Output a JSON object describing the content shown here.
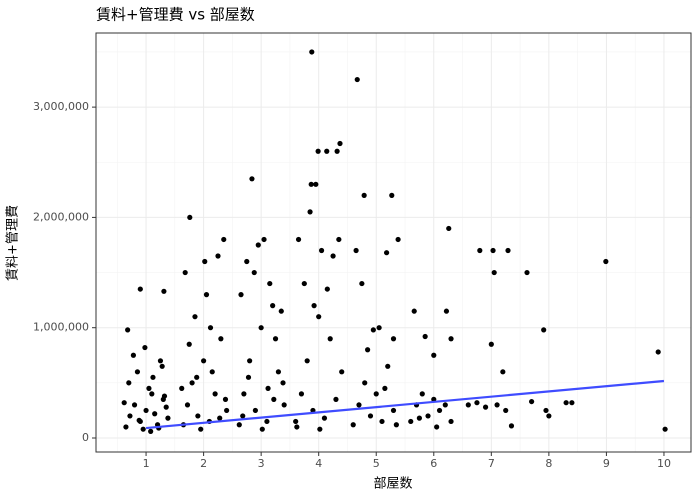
{
  "chart_data": {
    "type": "scatter",
    "title": "賃料+管理費 vs 部屋数",
    "x_label": "部屋数",
    "y_label": "賃料+管理費",
    "color": "#000000",
    "grid": true,
    "xlim": [
      0.13,
      10.47
    ],
    "xticks": [
      1,
      2,
      3,
      4,
      5,
      6,
      7,
      8,
      9,
      10
    ],
    "ylim": [
      -127000,
      3672000
    ],
    "yticks": [
      {
        "value": 0,
        "label": "0"
      },
      {
        "value": 1000000,
        "label": "1,000,000"
      },
      {
        "value": 2000000,
        "label": "2,000,000"
      },
      {
        "value": 3000000,
        "label": "3,000,000"
      }
    ],
    "x": [
      0.65,
      0.72,
      0.8,
      0.9,
      1.0,
      1.1,
      1.2,
      1.3,
      1.38,
      0.7,
      0.85,
      0.95,
      1.05,
      1.15,
      1.25,
      1.35,
      0.62,
      0.78,
      0.88,
      1.12,
      1.22,
      1.32,
      0.98,
      1.08,
      0.68,
      1.28,
      0.9,
      1.31,
      1.65,
      1.72,
      1.8,
      1.9,
      2.0,
      2.1,
      2.2,
      2.3,
      2.4,
      1.68,
      1.76,
      1.85,
      1.95,
      2.05,
      2.15,
      2.25,
      2.35,
      2.38,
      1.75,
      2.12,
      1.62,
      2.28,
      2.02,
      1.88,
      2.62,
      2.7,
      2.8,
      2.9,
      3.0,
      3.1,
      3.2,
      3.3,
      3.4,
      2.84,
      2.65,
      2.75,
      2.95,
      3.05,
      3.15,
      3.25,
      3.35,
      3.38,
      2.68,
      3.02,
      3.12,
      2.88,
      3.22,
      2.78,
      3.6,
      3.7,
      3.8,
      3.9,
      4.0,
      4.1,
      4.2,
      4.3,
      4.4,
      3.88,
      4.37,
      3.99,
      4.14,
      4.32,
      3.87,
      3.95,
      3.85,
      3.65,
      4.05,
      4.25,
      3.75,
      4.15,
      3.92,
      4.35,
      3.62,
      4.02,
      4.6,
      4.7,
      4.8,
      4.9,
      5.0,
      5.1,
      5.2,
      5.3,
      5.38,
      4.67,
      4.79,
      5.27,
      5.18,
      4.65,
      4.75,
      5.05,
      4.95,
      5.3,
      4.85,
      5.15,
      5.35,
      5.6,
      5.7,
      5.8,
      5.9,
      6.0,
      6.1,
      6.2,
      6.3,
      6.26,
      5.66,
      5.85,
      6.0,
      6.22,
      6.3,
      6.05,
      5.75,
      6.6,
      6.75,
      6.9,
      7.0,
      7.2,
      7.25,
      7.35,
      6.8,
      7.03,
      7.29,
      7.62,
      7.05,
      7.1,
      7.91,
      7.95,
      8.0,
      8.3,
      8.4,
      7.7,
      8.99,
      9.9,
      10.02
    ],
    "values": [
      100000,
      200000,
      300000,
      150000,
      250000,
      400000,
      120000,
      350000,
      180000,
      500000,
      600000,
      80000,
      450000,
      220000,
      700000,
      280000,
      320000,
      750000,
      160000,
      550000,
      90000,
      380000,
      820000,
      60000,
      980000,
      650000,
      1350000,
      1330000,
      120000,
      300000,
      500000,
      200000,
      700000,
      150000,
      400000,
      900000,
      250000,
      1500000,
      2000000,
      1100000,
      80000,
      1300000,
      600000,
      1650000,
      1800000,
      350000,
      850000,
      1000000,
      450000,
      180000,
      1600000,
      550000,
      120000,
      400000,
      700000,
      250000,
      1000000,
      150000,
      1200000,
      600000,
      300000,
      2350000,
      1300000,
      1600000,
      1750000,
      1800000,
      1400000,
      900000,
      1150000,
      500000,
      200000,
      80000,
      450000,
      1500000,
      350000,
      550000,
      150000,
      400000,
      700000,
      250000,
      1100000,
      180000,
      900000,
      350000,
      600000,
      3500000,
      2670000,
      2600000,
      2600000,
      2600000,
      2300000,
      2300000,
      2050000,
      1800000,
      1700000,
      1650000,
      1400000,
      1350000,
      1200000,
      1800000,
      100000,
      80000,
      120000,
      300000,
      500000,
      200000,
      400000,
      150000,
      650000,
      250000,
      1800000,
      3250000,
      2200000,
      2200000,
      1680000,
      1700000,
      1400000,
      1000000,
      980000,
      900000,
      800000,
      450000,
      120000,
      150000,
      300000,
      400000,
      200000,
      350000,
      250000,
      300000,
      150000,
      1900000,
      1150000,
      920000,
      750000,
      1150000,
      900000,
      100000,
      180000,
      300000,
      320000,
      280000,
      850000,
      600000,
      250000,
      110000,
      1700000,
      1700000,
      1700000,
      1500000,
      1500000,
      300000,
      980000,
      250000,
      200000,
      320000,
      320000,
      330000,
      1600000,
      780000,
      80000
    ],
    "trend": {
      "x": [
        1,
        10
      ],
      "values": [
        90000,
        517000
      ],
      "color": "#3f4cff"
    }
  }
}
